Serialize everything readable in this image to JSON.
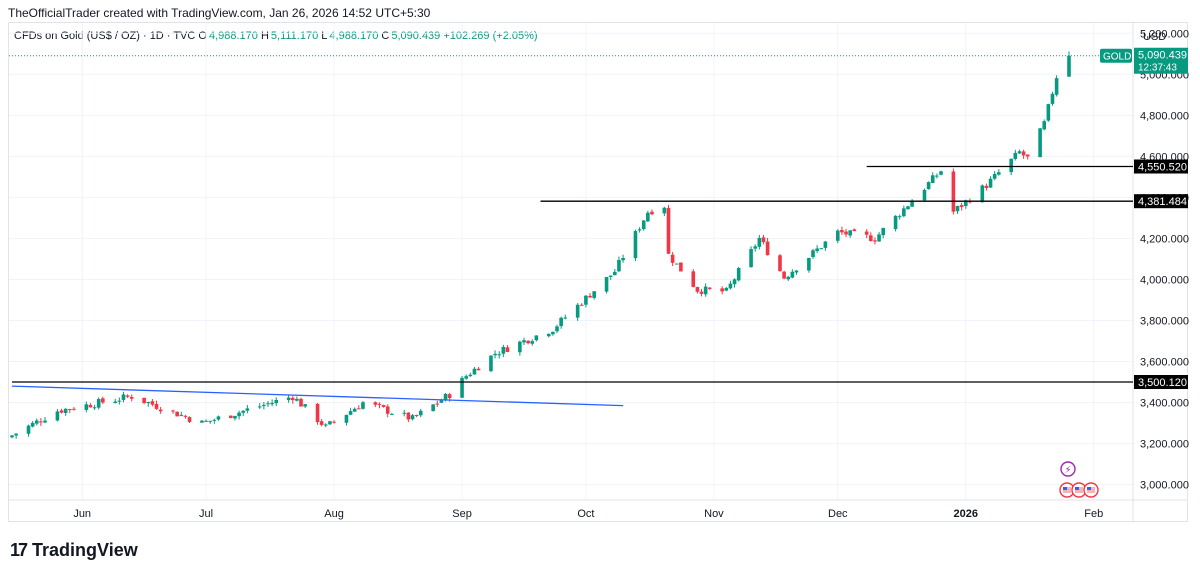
{
  "header": {
    "attribution": "TheOfficialTrader created with TradingView.com, Jan 26, 2026 14:52 UTC+5:30",
    "symbol": "CFDs on Gold (US$ / OZ) · 1D · TVC",
    "o_label": "O",
    "o_value": "4,988.170",
    "h_label": "H",
    "h_value": "5,111.170",
    "l_label": "L",
    "l_value": "4,988.170",
    "c_label": "C",
    "c_value": "5,090.439",
    "change": "+102.269 (+2.05%)"
  },
  "footer": {
    "logo_text": "TradingView"
  },
  "chart_data": {
    "type": "candlestick",
    "currency_label": "USD",
    "y_ticks": [
      "5,200.000",
      "5,000.000",
      "4,800.000",
      "4,600.000",
      "4,400.000",
      "4,200.000",
      "4,000.000",
      "3,800.000",
      "3,600.000",
      "3,400.000",
      "3,200.000",
      "3,000.000"
    ],
    "y_tick_values": [
      5200,
      5000,
      4800,
      4600,
      4400,
      4200,
      4000,
      3800,
      3600,
      3400,
      3200,
      3000
    ],
    "ylim": [
      2925,
      5250
    ],
    "x_ticks": [
      {
        "label": "Jun",
        "date": "2025-06-01"
      },
      {
        "label": "Jul",
        "date": "2025-07-01"
      },
      {
        "label": "Aug",
        "date": "2025-08-01"
      },
      {
        "label": "Sep",
        "date": "2025-09-01"
      },
      {
        "label": "Oct",
        "date": "2025-10-01"
      },
      {
        "label": "Nov",
        "date": "2025-11-01"
      },
      {
        "label": "Dec",
        "date": "2025-12-01"
      },
      {
        "label": "2026",
        "date": "2026-01-01"
      },
      {
        "label": "Feb",
        "date": "2026-02-01"
      }
    ],
    "first_date": "2025-05-15",
    "last_date": "2026-01-26",
    "colors": {
      "up": "#089981",
      "down": "#f23645",
      "trendline": "#2962ff",
      "level": "#000000",
      "price_line": "#089981",
      "grid": "#f0f3fa"
    },
    "key_points": [
      {
        "date": "2025-05-15",
        "close": 3240
      },
      {
        "date": "2025-05-26",
        "close": 3360
      },
      {
        "date": "2025-06-13",
        "close": 3430
      },
      {
        "date": "2025-06-30",
        "close": 3300
      },
      {
        "date": "2025-07-22",
        "close": 3430
      },
      {
        "date": "2025-07-30",
        "close": 3280
      },
      {
        "date": "2025-08-08",
        "close": 3400
      },
      {
        "date": "2025-08-20",
        "close": 3320
      },
      {
        "date": "2025-08-29",
        "close": 3440
      },
      {
        "date": "2025-09-02",
        "close": 3530
      },
      {
        "date": "2025-09-09",
        "close": 3640
      },
      {
        "date": "2025-09-23",
        "close": 3760
      },
      {
        "date": "2025-10-08",
        "close": 4040
      },
      {
        "date": "2025-10-16",
        "close": 4330
      },
      {
        "date": "2025-10-20",
        "close": 4360
      },
      {
        "date": "2025-10-21",
        "close": 4120
      },
      {
        "date": "2025-10-28",
        "close": 3950
      },
      {
        "date": "2025-11-04",
        "close": 3940
      },
      {
        "date": "2025-11-12",
        "close": 4200
      },
      {
        "date": "2025-11-18",
        "close": 4010
      },
      {
        "date": "2025-12-01",
        "close": 4230
      },
      {
        "date": "2025-12-10",
        "close": 4200
      },
      {
        "date": "2025-12-26",
        "close": 4530
      },
      {
        "date": "2025-12-29",
        "close": 4330
      },
      {
        "date": "2026-01-06",
        "close": 4460
      },
      {
        "date": "2026-01-14",
        "close": 4620
      },
      {
        "date": "2026-01-16",
        "close": 4590
      },
      {
        "date": "2026-01-20",
        "close": 4760
      },
      {
        "date": "2026-01-23",
        "close": 4990
      },
      {
        "date": "2026-01-26",
        "close": 5090.439
      }
    ],
    "levels": [
      {
        "value": 3500.12,
        "label": "3,500.120",
        "from_date": "2025-05-15"
      },
      {
        "value": 4381.484,
        "label": "4,381.484",
        "from_date": "2025-09-20"
      },
      {
        "value": 4550.52,
        "label": "4,550.520",
        "from_date": "2025-12-08"
      }
    ],
    "trendline": {
      "from": {
        "date": "2025-05-15",
        "value": 3480
      },
      "to": {
        "date": "2025-10-10",
        "value": 3385
      }
    },
    "last_price": {
      "symbol": "GOLD",
      "value": 5090.439,
      "label": "5,090.439",
      "countdown": "12:37:43"
    }
  }
}
